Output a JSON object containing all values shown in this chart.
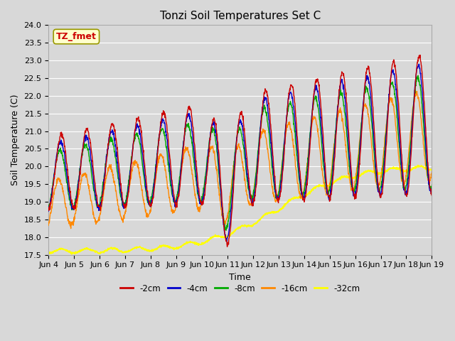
{
  "title": "Tonzi Soil Temperatures Set C",
  "xlabel": "Time",
  "ylabel": "Soil Temperature (C)",
  "ylim": [
    17.5,
    24.0
  ],
  "yticks": [
    17.5,
    18.0,
    18.5,
    19.0,
    19.5,
    20.0,
    20.5,
    21.0,
    21.5,
    22.0,
    22.5,
    23.0,
    23.5,
    24.0
  ],
  "xtick_labels": [
    "Jun 4",
    "Jun 5",
    "Jun 6",
    "Jun 7",
    "Jun 8",
    "Jun 9",
    "Jun 10",
    "Jun 11",
    "Jun 12",
    "Jun 13",
    "Jun 14",
    "Jun 15",
    "Jun 16",
    "Jun 17",
    "Jun 18",
    "Jun 19"
  ],
  "colors": {
    "neg2cm": "#cc0000",
    "neg4cm": "#0000cc",
    "neg8cm": "#00aa00",
    "neg16cm": "#ff8800",
    "neg32cm": "#ffff00"
  },
  "legend_labels": [
    "-2cm",
    "-4cm",
    "-8cm",
    "-16cm",
    "-32cm"
  ],
  "annotation_text": "TZ_fmet",
  "annotation_color": "#cc0000",
  "annotation_bg": "#ffffcc",
  "background_color": "#d8d8d8",
  "grid_color": "#ffffff",
  "title_fontsize": 11,
  "label_fontsize": 9,
  "tick_fontsize": 8
}
